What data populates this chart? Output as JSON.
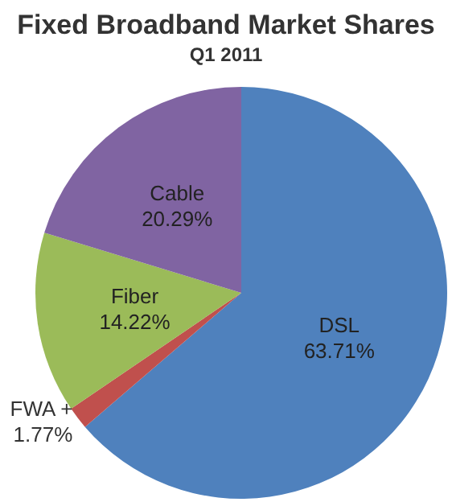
{
  "chart_data": {
    "type": "pie",
    "title": "Fixed Broadband Market Shares",
    "subtitle": "Q1 2011",
    "categories": [
      "DSL",
      "FWA +",
      "Fiber",
      "Cable"
    ],
    "values": [
      63.71,
      1.77,
      14.22,
      20.29
    ],
    "value_labels": [
      "63.71%",
      "1.77%",
      "14.22%",
      "20.29%"
    ],
    "colors": [
      "#4f81bd",
      "#c0504d",
      "#9bbb59",
      "#8064a2"
    ],
    "legend": false
  }
}
